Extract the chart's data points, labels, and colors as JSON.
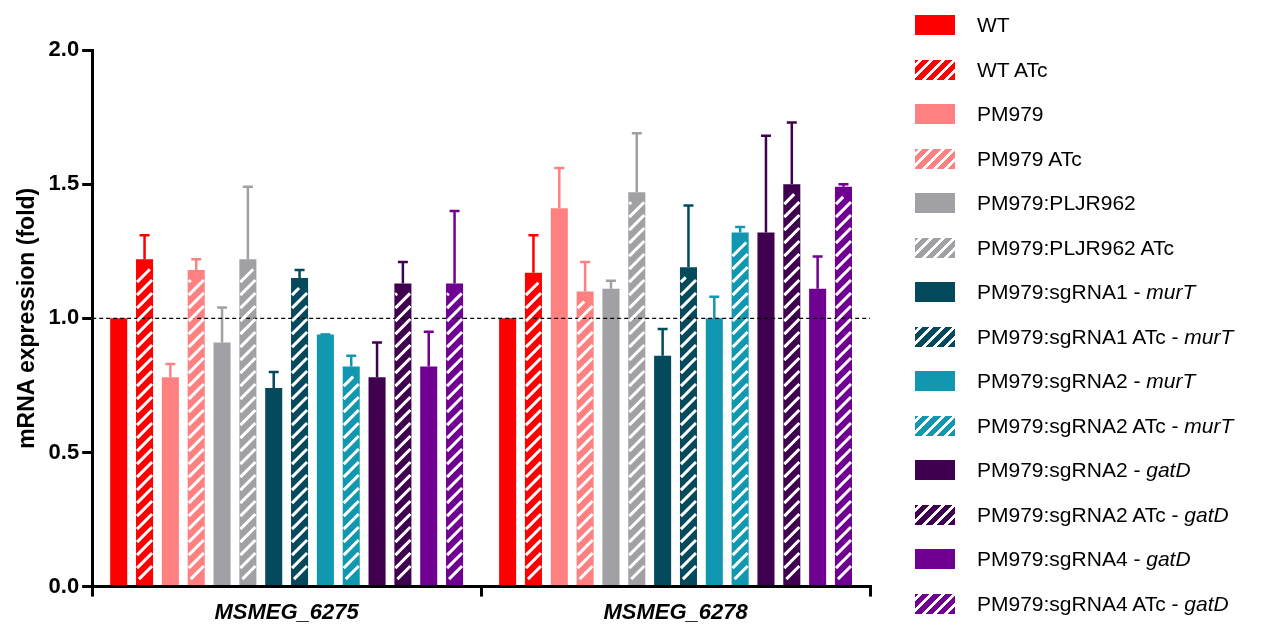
{
  "chart_data": {
    "type": "bar",
    "ylabel": "mRNA expression (fold)",
    "categories": [
      "MSMEG_6275",
      "MSMEG_6278"
    ],
    "ylim": [
      0,
      2
    ],
    "yticks": [
      {
        "value": 0,
        "label": "0.0"
      },
      {
        "value": 0.5,
        "label": "0.5"
      },
      {
        "value": 1,
        "label": "1.0"
      },
      {
        "value": 1.5,
        "label": "1.5"
      },
      {
        "value": 2,
        "label": "2.0"
      }
    ],
    "grid": false,
    "legend": "right",
    "ref_lines": [
      {
        "axis": "y",
        "value": 1,
        "color": "#000000",
        "line_style": "dashed"
      }
    ],
    "series": [
      {
        "name": "WT",
        "color": "#ff0000",
        "values": [
          1.0,
          1.0
        ]
      },
      {
        "name": "WT ATc",
        "color": "#ff0000",
        "values": [
          1.22,
          1.17
        ],
        "errors": [
          [
            1.22,
            1.31
          ],
          [
            1.17,
            1.31
          ]
        ]
      },
      {
        "name": "PM979",
        "color": "#ff8080",
        "values": [
          0.78,
          1.41
        ],
        "errors": [
          [
            0.78,
            0.83
          ],
          [
            1.41,
            1.56
          ]
        ]
      },
      {
        "name": "PM979 ATc",
        "color": "#ff8080",
        "values": [
          1.18,
          1.1
        ],
        "errors": [
          [
            1.18,
            1.22
          ],
          [
            1.1,
            1.21
          ]
        ]
      },
      {
        "name": "PM979:PLJR962",
        "color": "#a0a0a5",
        "values": [
          0.91,
          1.11
        ],
        "errors": [
          [
            0.91,
            1.04
          ],
          [
            1.11,
            1.14
          ]
        ]
      },
      {
        "name": "PM979:PLJR962 ATc",
        "color": "#a0a0a5",
        "values": [
          1.22,
          1.47
        ],
        "errors": [
          [
            1.22,
            1.49
          ],
          [
            1.47,
            1.69
          ]
        ]
      },
      {
        "name": "PM979:sgRNA1 - murT",
        "color": "#054a5c",
        "values": [
          0.74,
          0.86
        ],
        "errors": [
          [
            0.74,
            0.8
          ],
          [
            0.86,
            0.96
          ]
        ]
      },
      {
        "name": "PM979:sgRNA1 ATc - murT",
        "color": "#054a5c",
        "values": [
          1.15,
          1.19
        ],
        "errors": [
          [
            1.15,
            1.18
          ],
          [
            1.19,
            1.42
          ]
        ]
      },
      {
        "name": "PM979:sgRNA2 - murT",
        "color": "#1297b0",
        "values": [
          0.94,
          1.0
        ],
        "errors": [
          [
            0.94,
            0.94
          ],
          [
            1.0,
            1.08
          ]
        ]
      },
      {
        "name": "PM979:sgRNA2 ATc - murT",
        "color": "#1297b0",
        "values": [
          0.82,
          1.32
        ],
        "errors": [
          [
            0.82,
            0.86
          ],
          [
            1.32,
            1.34
          ]
        ]
      },
      {
        "name": "PM979:sgRNA2 - gatD",
        "color": "#3e004f",
        "values": [
          0.78,
          1.32
        ],
        "errors": [
          [
            0.78,
            0.91
          ],
          [
            1.32,
            1.68
          ]
        ]
      },
      {
        "name": "PM979:sgRNA2 ATc - gatD",
        "color": "#3e004f",
        "values": [
          1.13,
          1.5
        ],
        "errors": [
          [
            1.13,
            1.21
          ],
          [
            1.5,
            1.73
          ]
        ]
      },
      {
        "name": "PM979:sgRNA4 - gatD",
        "color": "#700092",
        "values": [
          0.82,
          1.11
        ],
        "errors": [
          [
            0.82,
            0.95
          ],
          [
            1.11,
            1.23
          ]
        ]
      },
      {
        "name": "PM979:sgRNA4 ATc - gatD",
        "color": "#700092",
        "values": [
          1.13,
          1.49
        ],
        "errors": [
          [
            1.13,
            1.4
          ],
          [
            1.49,
            1.5
          ]
        ]
      }
    ]
  }
}
